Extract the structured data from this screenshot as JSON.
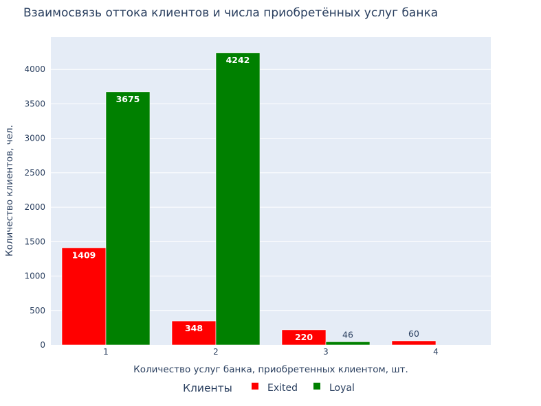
{
  "chart_data": {
    "type": "bar",
    "title": "Взаимосвязь оттока клиентов и числа приобретённых услуг банка",
    "xlabel": "Количество услуг банка, приобретенных клиентом, шт.",
    "ylabel": "Количество клиентов, чел.",
    "categories": [
      "1",
      "2",
      "3",
      "4"
    ],
    "ylim": [
      0,
      4470
    ],
    "yticks": [
      0,
      500,
      1000,
      1500,
      2000,
      2500,
      3000,
      3500,
      4000
    ],
    "grid": true,
    "legend": {
      "title": "Клиенты",
      "position": "bottom"
    },
    "series": [
      {
        "name": "Exited",
        "color": "#ff0000",
        "values": [
          1409,
          348,
          220,
          60
        ]
      },
      {
        "name": "Loyal",
        "color": "#008000",
        "values": [
          3675,
          4242,
          46,
          0
        ]
      }
    ]
  },
  "colors": {
    "plot_bg": "#e5ecf6",
    "grid": "#ffffff",
    "text": "#2a3f5f"
  }
}
